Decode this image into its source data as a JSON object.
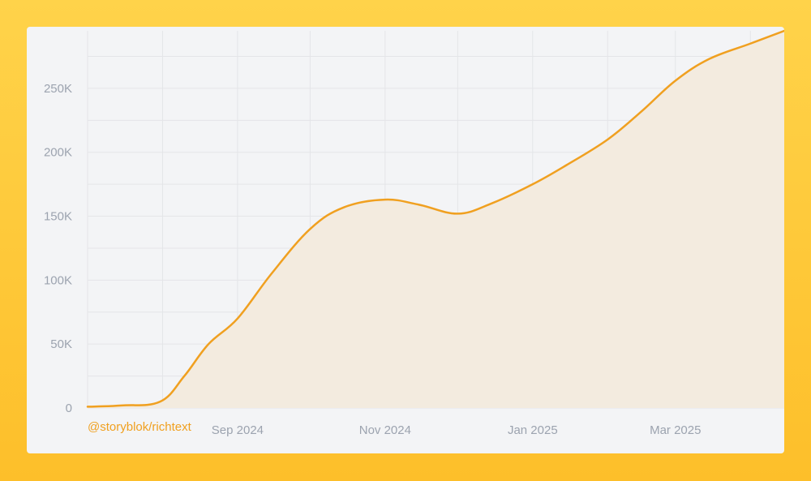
{
  "colors": {
    "background": "#fdc634",
    "plot_background": "#f3f4f6",
    "line": "#f0a020",
    "area": "#f3ebdf",
    "grid": "#e4e5e8",
    "tick_text": "#9ca3af"
  },
  "chart_data": {
    "type": "area",
    "title": "",
    "xlabel": "",
    "ylabel": "",
    "series_label": "@storyblok/richtext",
    "x_ticks": [
      "Sep 2024",
      "Nov 2024",
      "Jan 2025",
      "Mar 2025"
    ],
    "y_ticks": [
      "0",
      "50K",
      "100K",
      "150K",
      "200K",
      "250K"
    ],
    "x_range": [
      "2024-07-01",
      "2025-04-15"
    ],
    "ylim": [
      0,
      295000
    ],
    "grid": true,
    "series": [
      {
        "x": [
          "2024-07-01",
          "2024-07-15",
          "2024-07-31",
          "2024-08-10",
          "2024-08-20",
          "2024-09-01",
          "2024-09-15",
          "2024-10-01",
          "2024-10-15",
          "2024-11-01",
          "2024-11-15",
          "2024-12-01",
          "2024-12-15",
          "2025-01-01",
          "2025-01-15",
          "2025-02-01",
          "2025-02-15",
          "2025-03-01",
          "2025-03-15",
          "2025-04-01",
          "2025-04-15"
        ],
        "y": [
          1000,
          2000,
          5000,
          25000,
          50000,
          70000,
          105000,
          140000,
          157000,
          163000,
          159000,
          152000,
          160000,
          175000,
          190000,
          210000,
          232000,
          256000,
          273000,
          285000,
          295000
        ]
      }
    ]
  }
}
